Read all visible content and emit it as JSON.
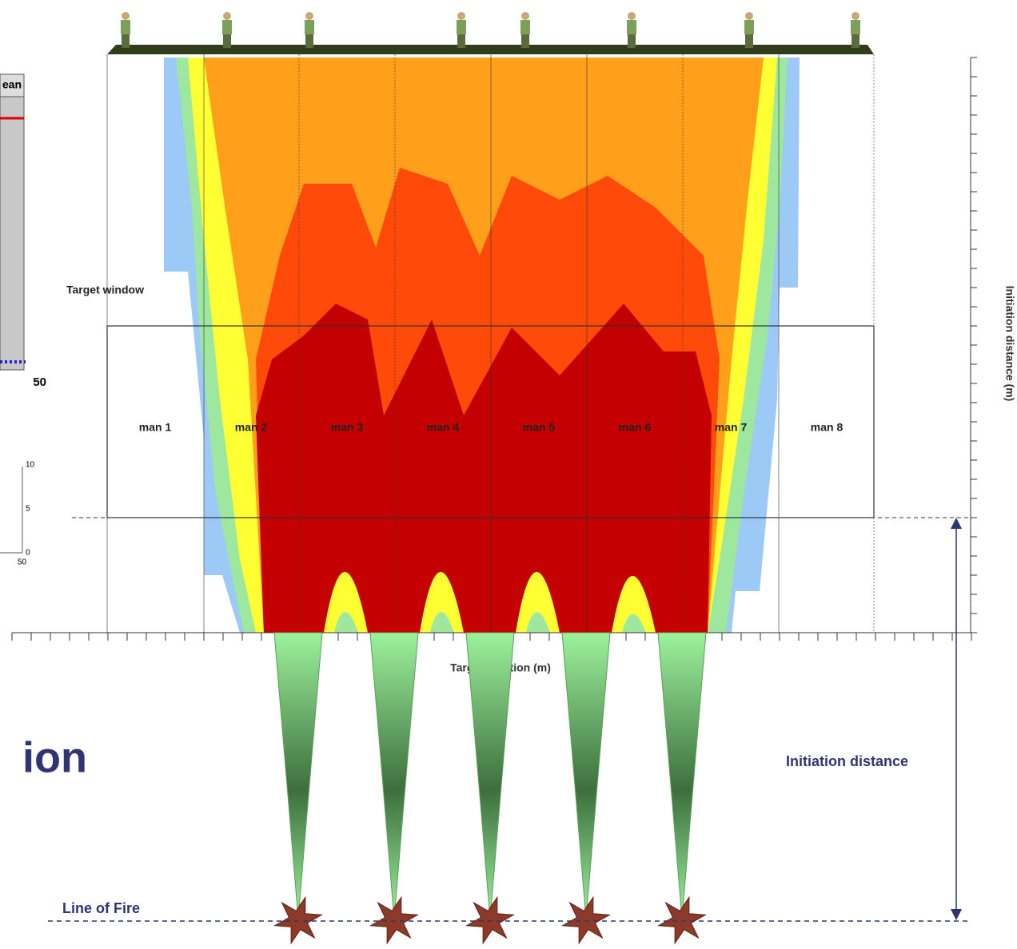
{
  "left_chart": {
    "header": "ean",
    "x_label": "50",
    "small_axis": {
      "ticks": [
        "10",
        "5",
        "0"
      ],
      "x_label": "50"
    }
  },
  "plot": {
    "target_window_label": "Target window",
    "men": [
      "man 1",
      "man 2",
      "man 3",
      "man 4",
      "man 5",
      "man 6",
      "man 7",
      "man 8"
    ],
    "x_axis_label": "Target position (m)",
    "y_axis_label": "Initiation distance (m)"
  },
  "title_fragment": "ion",
  "annotations": {
    "initiation_distance": "Initiation distance",
    "line_of_fire": "Line of Fire"
  }
}
